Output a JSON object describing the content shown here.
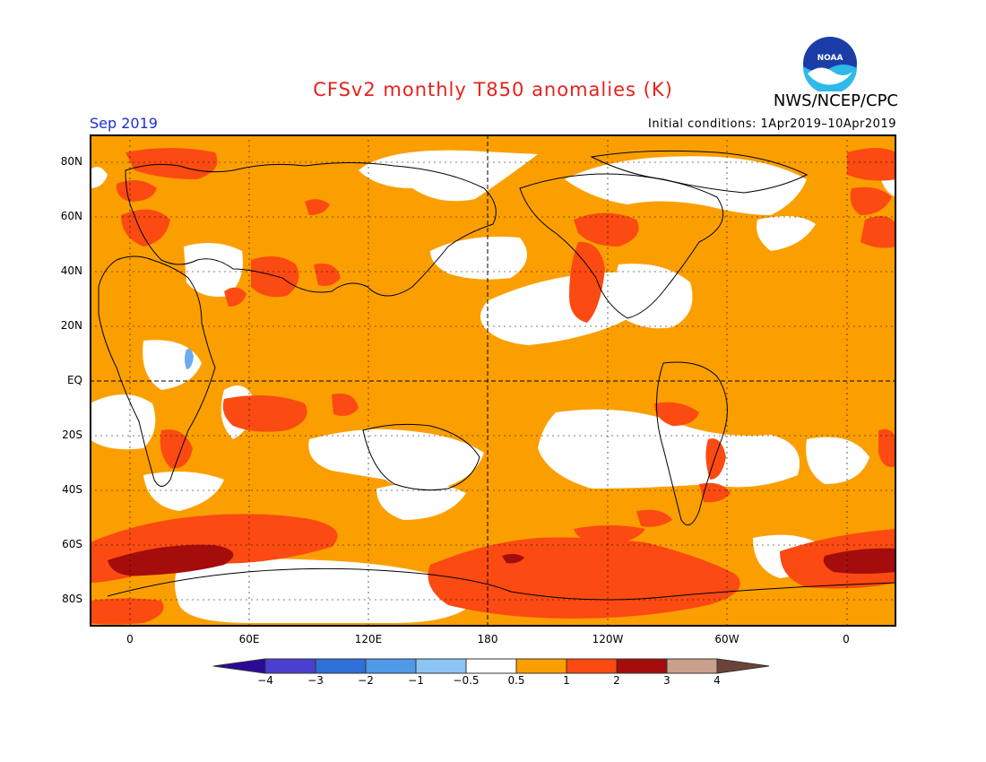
{
  "title": "CFSv2 monthly T850 anomalies (K)",
  "agency": "NWS/NCEP/CPC",
  "logo_text": "NOAA",
  "month": "Sep 2019",
  "initial_conditions": "Initial conditions: 1Apr2019–10Apr2019",
  "lat_labels": [
    "80N",
    "60N",
    "40N",
    "20N",
    "EQ",
    "20S",
    "40S",
    "60S",
    "80S"
  ],
  "lon_labels": [
    "0",
    "60E",
    "120E",
    "180",
    "120W",
    "60W",
    "0"
  ],
  "colorbar": {
    "ticks": [
      "−4",
      "−3",
      "−2",
      "−1",
      "−0.5",
      "0.5",
      "1",
      "2",
      "3",
      "4"
    ],
    "colors": [
      "#2a0a96",
      "#4a3fd0",
      "#2e6fd8",
      "#4f9ae8",
      "#8cc4f4",
      "#ffffff",
      "#fb9f00",
      "#fb4a12",
      "#a50d0d",
      "#c9a08c",
      "#6b4438"
    ]
  },
  "colors": {
    "warm_05_1": "#fb9f00",
    "warm_1_2": "#fb4a12",
    "warm_2_3": "#a50d0d",
    "near_zero": "#ffffff",
    "cool_05_1": "#8cc4f4",
    "title": "#e8201c",
    "month": "#1b2fd8"
  }
}
